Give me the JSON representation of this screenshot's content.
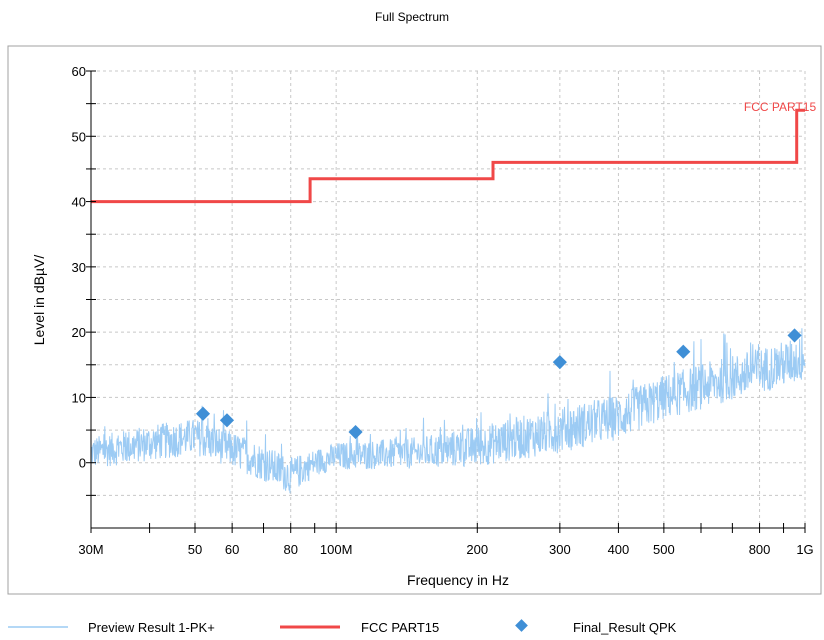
{
  "chart_data": {
    "type": "line",
    "title": "Full Spectrum",
    "xlabel": "Frequency in Hz",
    "ylabel": "Level in dBµV/",
    "x_scale": "log",
    "xlim": [
      30000000,
      1000000000
    ],
    "ylim": [
      -10,
      60
    ],
    "x_ticks": [
      {
        "value": 30000000,
        "label": "30M"
      },
      {
        "value": 50000000,
        "label": "50"
      },
      {
        "value": 60000000,
        "label": "60"
      },
      {
        "value": 80000000,
        "label": "80"
      },
      {
        "value": 100000000,
        "label": "100M"
      },
      {
        "value": 200000000,
        "label": "200"
      },
      {
        "value": 300000000,
        "label": "300"
      },
      {
        "value": 400000000,
        "label": "400"
      },
      {
        "value": 500000000,
        "label": "500"
      },
      {
        "value": 800000000,
        "label": "800"
      },
      {
        "value": 1000000000,
        "label": "1G"
      }
    ],
    "y_ticks": [
      0,
      10,
      20,
      30,
      40,
      50,
      60
    ],
    "grid": true,
    "legend_position": "bottom",
    "series": [
      {
        "name": "Preview  Result 1-PK+",
        "kind": "noise_trace",
        "color": "#9ccbf4",
        "envelope_x": [
          30000000,
          40000000,
          50000000,
          60000000,
          70000000,
          80000000,
          90000000,
          100000000,
          150000000,
          200000000,
          300000000,
          400000000,
          500000000,
          700000000,
          1000000000
        ],
        "envelope_low": [
          -2,
          -1,
          0,
          -2,
          -4,
          -6,
          -3,
          -2,
          -2,
          -2,
          0,
          2,
          5,
          8,
          11
        ],
        "envelope_high": [
          5,
          7,
          8,
          6,
          4,
          2,
          3,
          4,
          5,
          7,
          10,
          12,
          15,
          18,
          21
        ]
      },
      {
        "name": "FCC PART15",
        "kind": "step_limit",
        "color": "#f04848",
        "x": [
          30000000,
          88000000,
          88000000,
          216000000,
          216000000,
          960000000,
          960000000,
          1000000000
        ],
        "y": [
          40,
          40,
          43.5,
          43.5,
          46,
          46,
          54,
          54
        ]
      },
      {
        "name": "Final_Result QPK",
        "kind": "markers",
        "color": "#3f8fd6",
        "x": [
          52000000,
          58500000,
          110000000,
          300000000,
          550000000,
          950000000
        ],
        "y": [
          7.5,
          6.5,
          4.7,
          15.4,
          17.0,
          19.5
        ]
      }
    ],
    "annotations": [
      {
        "text": "FCC PART15",
        "color": "#f04848"
      }
    ]
  }
}
